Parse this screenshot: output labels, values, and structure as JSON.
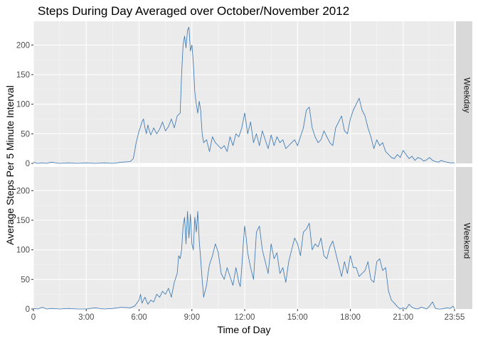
{
  "chart_data": {
    "type": "line",
    "title": "Steps During Day Averaged over October/November 2012",
    "xlabel": "Time of Day",
    "ylabel": "Average Steps Per 5 Minute Interval",
    "x_unit": "minutes after midnight",
    "xlim": [
      0,
      1435
    ],
    "ylim": [
      0,
      240
    ],
    "x_tick_values": [
      0,
      180,
      360,
      540,
      720,
      900,
      1080,
      1260,
      1435
    ],
    "x_tick_labels": [
      "0",
      "3:00",
      "6:00",
      "9:00",
      "12:00",
      "15:00",
      "18:00",
      "21:00",
      "23:55"
    ],
    "y_tick_values": [
      0,
      50,
      100,
      150,
      200
    ],
    "y_tick_labels": [
      "0",
      "50",
      "100",
      "150",
      "200"
    ],
    "grid": true,
    "line_color": "#3c78b4",
    "panels": [
      {
        "name": "Weekday",
        "series": [
          {
            "x": [
              0,
              15,
              30,
              45,
              60,
              90,
              120,
              150,
              180,
              210,
              240,
              270,
              300,
              330,
              340,
              345,
              350,
              355,
              360,
              365,
              370,
              375,
              380,
              385,
              390,
              395,
              400,
              410,
              420,
              430,
              440,
              450,
              460,
              470,
              480,
              490,
              500,
              505,
              510,
              515,
              520,
              525,
              530,
              535,
              540,
              545,
              550,
              555,
              560,
              565,
              570,
              575,
              580,
              590,
              600,
              610,
              620,
              630,
              640,
              650,
              660,
              670,
              680,
              690,
              700,
              710,
              720,
              730,
              740,
              750,
              760,
              770,
              780,
              790,
              800,
              810,
              820,
              830,
              840,
              850,
              860,
              870,
              880,
              890,
              900,
              910,
              920,
              930,
              940,
              950,
              960,
              970,
              980,
              990,
              1000,
              1010,
              1020,
              1030,
              1040,
              1050,
              1060,
              1070,
              1080,
              1090,
              1100,
              1110,
              1120,
              1130,
              1140,
              1150,
              1160,
              1170,
              1180,
              1190,
              1200,
              1210,
              1220,
              1230,
              1240,
              1250,
              1260,
              1270,
              1280,
              1290,
              1300,
              1310,
              1320,
              1330,
              1340,
              1350,
              1360,
              1370,
              1380,
              1390,
              1400,
              1410,
              1420,
              1435
            ],
            "y": [
              2,
              0,
              1,
              0,
              2,
              0,
              1,
              0,
              1,
              0,
              1,
              0,
              2,
              3,
              8,
              20,
              35,
              45,
              55,
              62,
              70,
              75,
              60,
              50,
              65,
              55,
              48,
              60,
              50,
              58,
              70,
              55,
              62,
              75,
              60,
              80,
              85,
              150,
              200,
              215,
              195,
              225,
              230,
              190,
              200,
              170,
              120,
              100,
              85,
              105,
              90,
              50,
              35,
              40,
              20,
              45,
              35,
              30,
              25,
              30,
              20,
              45,
              30,
              50,
              45,
              60,
              85,
              50,
              70,
              35,
              50,
              30,
              55,
              40,
              25,
              48,
              30,
              45,
              35,
              40,
              25,
              30,
              35,
              40,
              30,
              45,
              60,
              90,
              95,
              60,
              45,
              35,
              40,
              55,
              45,
              35,
              30,
              60,
              70,
              80,
              55,
              50,
              75,
              90,
              100,
              110,
              90,
              80,
              60,
              45,
              25,
              40,
              30,
              35,
              20,
              15,
              10,
              8,
              15,
              10,
              22,
              15,
              8,
              12,
              5,
              10,
              8,
              4,
              6,
              10,
              5,
              3,
              2,
              5,
              3,
              2,
              1,
              1
            ]
          }
        ]
      },
      {
        "name": "Weekend",
        "series": [
          {
            "x": [
              0,
              15,
              30,
              45,
              60,
              90,
              120,
              150,
              180,
              210,
              240,
              270,
              300,
              330,
              345,
              360,
              365,
              370,
              380,
              390,
              400,
              410,
              420,
              430,
              440,
              450,
              460,
              470,
              480,
              490,
              495,
              500,
              505,
              510,
              515,
              520,
              525,
              530,
              535,
              540,
              545,
              550,
              555,
              560,
              565,
              570,
              575,
              580,
              585,
              590,
              595,
              600,
              610,
              620,
              630,
              640,
              650,
              660,
              670,
              680,
              690,
              700,
              705,
              710,
              715,
              720,
              725,
              730,
              740,
              750,
              760,
              770,
              780,
              790,
              800,
              810,
              820,
              830,
              840,
              850,
              860,
              870,
              880,
              890,
              900,
              910,
              920,
              930,
              940,
              950,
              960,
              970,
              980,
              990,
              1000,
              1010,
              1020,
              1030,
              1040,
              1050,
              1060,
              1070,
              1080,
              1090,
              1100,
              1110,
              1120,
              1130,
              1140,
              1150,
              1160,
              1170,
              1180,
              1190,
              1200,
              1210,
              1220,
              1230,
              1240,
              1250,
              1260,
              1270,
              1280,
              1290,
              1300,
              1310,
              1320,
              1330,
              1340,
              1350,
              1360,
              1370,
              1380,
              1390,
              1400,
              1410,
              1420,
              1430,
              1435
            ],
            "y": [
              1,
              0,
              3,
              0,
              1,
              0,
              1,
              0,
              0,
              2,
              0,
              1,
              3,
              2,
              5,
              15,
              25,
              10,
              20,
              8,
              15,
              12,
              25,
              20,
              30,
              25,
              35,
              20,
              45,
              60,
              90,
              85,
              100,
              140,
              155,
              110,
              165,
              120,
              160,
              110,
              100,
              155,
              130,
              165,
              115,
              85,
              50,
              20,
              30,
              40,
              60,
              75,
              90,
              110,
              95,
              60,
              50,
              70,
              55,
              40,
              70,
              45,
              38,
              70,
              110,
              140,
              120,
              95,
              70,
              50,
              130,
              140,
              100,
              80,
              60,
              110,
              85,
              95,
              60,
              70,
              45,
              80,
              100,
              120,
              110,
              90,
              130,
              135,
              145,
              100,
              110,
              105,
              120,
              90,
              85,
              105,
              115,
              95,
              75,
              55,
              80,
              60,
              90,
              70,
              70,
              55,
              60,
              65,
              80,
              50,
              45,
              80,
              85,
              65,
              70,
              30,
              15,
              10,
              4,
              0,
              2,
              0,
              8,
              3,
              1,
              0,
              3,
              2,
              0,
              5,
              12,
              1,
              0,
              0,
              1,
              2,
              1,
              5,
              1
            ]
          }
        ]
      }
    ]
  }
}
